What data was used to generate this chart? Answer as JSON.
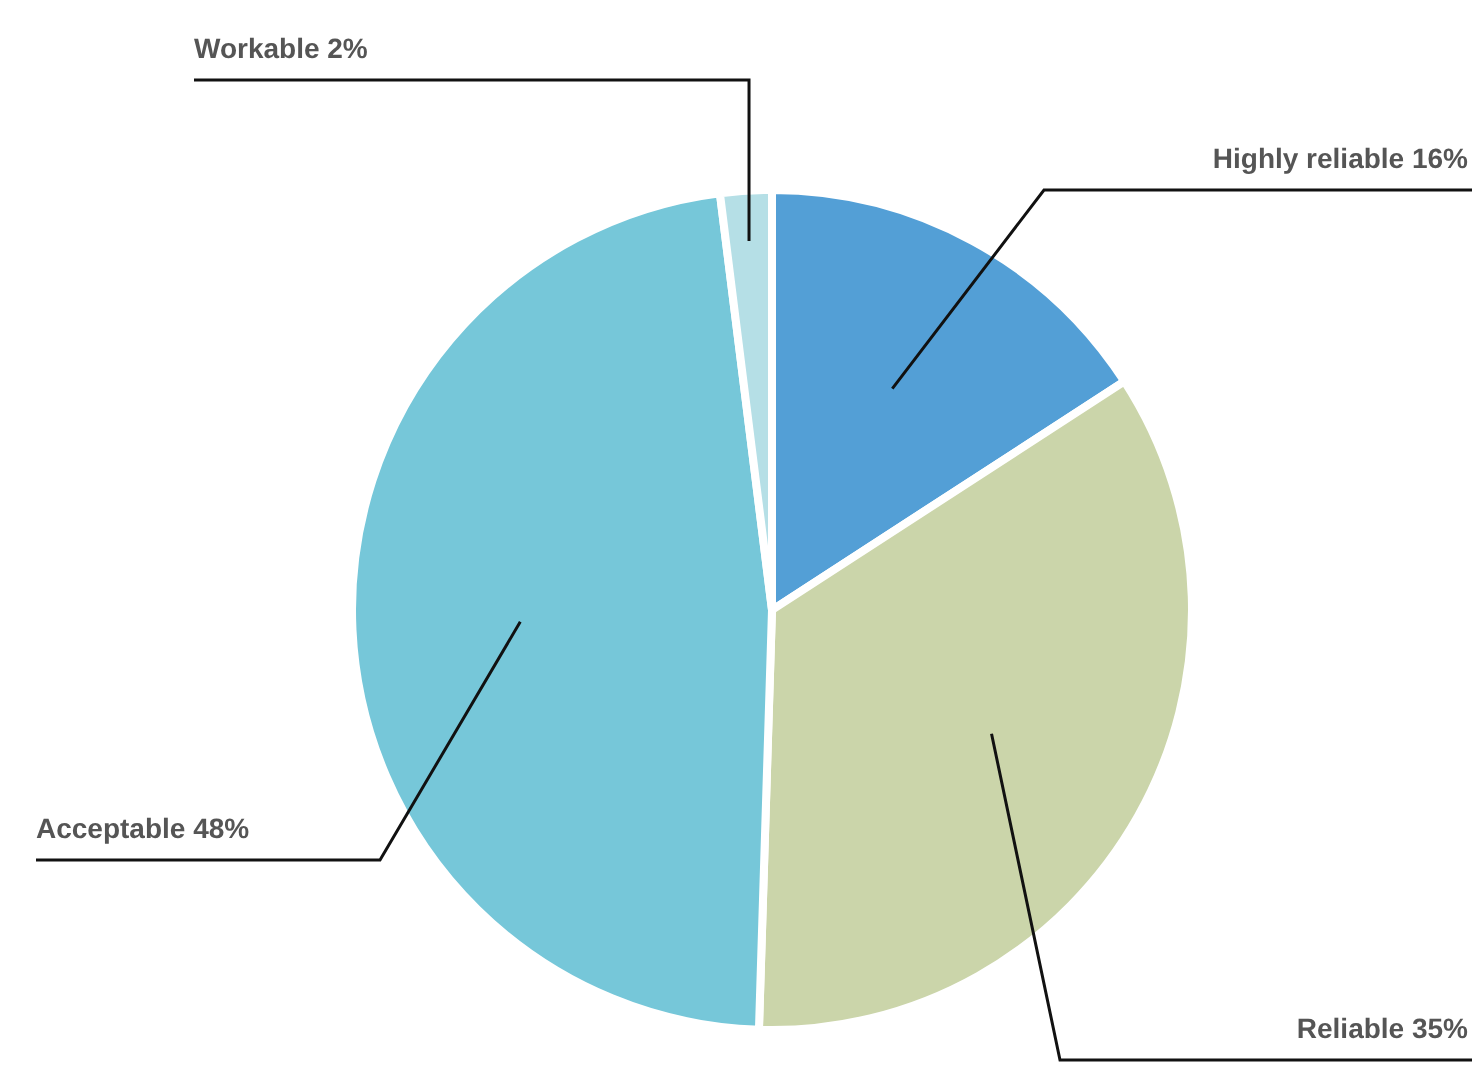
{
  "chart_data": {
    "type": "pie",
    "categories": [
      "Highly reliable 16%",
      "Reliable 35%",
      "Acceptable 48%",
      "Workable 2%"
    ],
    "values": [
      16,
      35,
      48,
      2
    ],
    "colors": [
      "#539fd6",
      "#cbd5aa",
      "#76c7d9",
      "#b5dfe6"
    ]
  }
}
